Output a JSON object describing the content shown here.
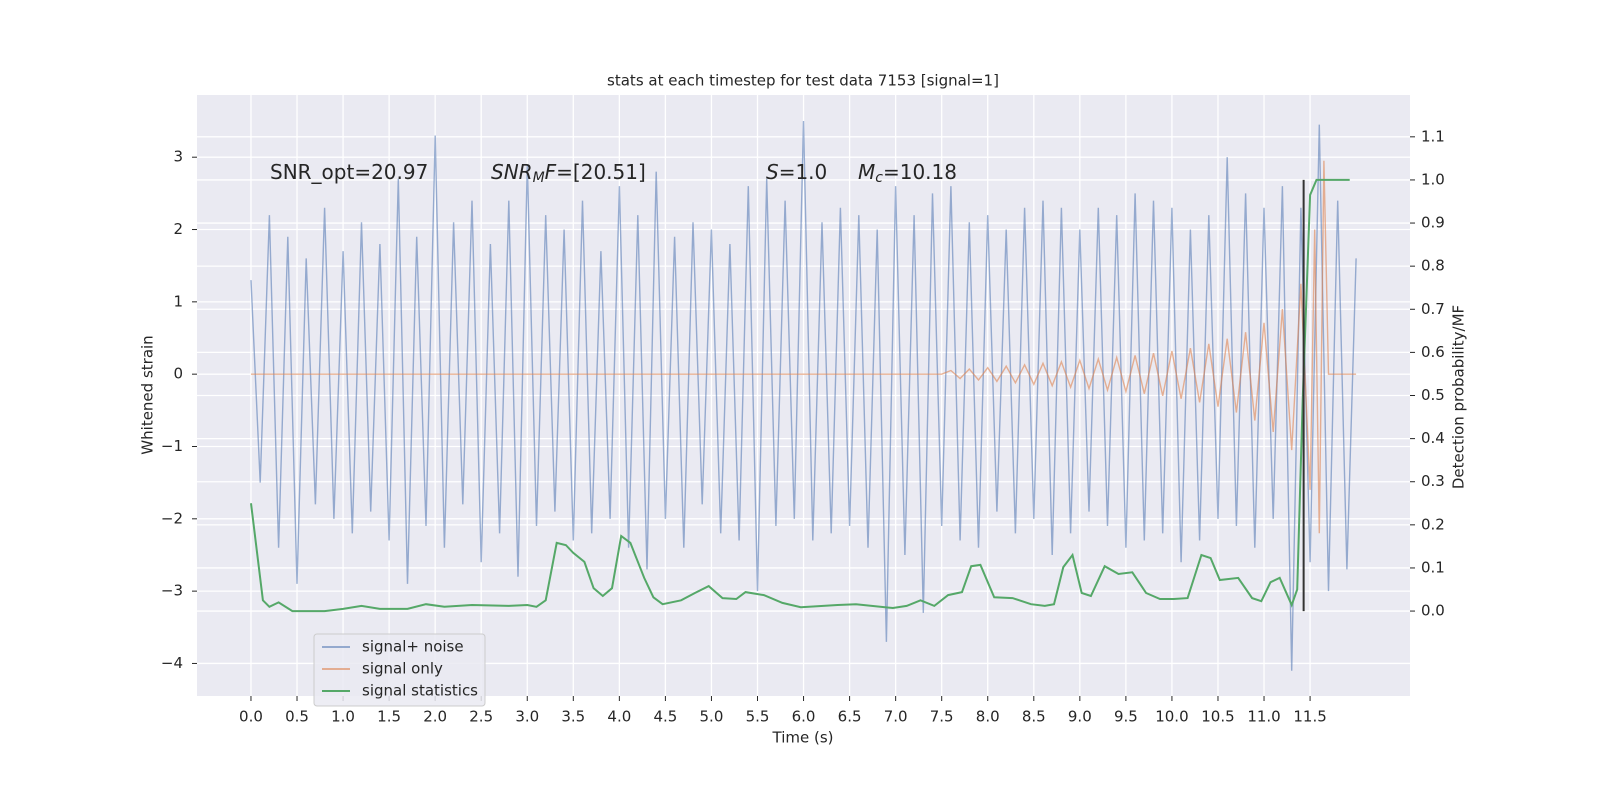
{
  "chart_data": {
    "type": "line",
    "title": "stats at each timestep for test data 7153 [signal=1]",
    "xlabel": "Time (s)",
    "ylabel": "Whitened strain",
    "y2label": "Detection probability/MF",
    "annotations": [
      [
        {
          "text": "SNR_opt=20.97",
          "style": "normal"
        }
      ],
      [
        {
          "text": "SNR",
          "style": "italic"
        },
        {
          "text": "M",
          "style": "italic-sub"
        },
        {
          "text": "F",
          "style": "italic"
        },
        {
          "text": "=[20.51]",
          "style": "normal"
        }
      ],
      [
        {
          "text": "S",
          "style": "italic"
        },
        {
          "text": "=1.0",
          "style": "normal"
        }
      ],
      [
        {
          "text": "M",
          "style": "italic"
        },
        {
          "text": "c",
          "style": "italic-sub"
        },
        {
          "text": "=10.18",
          "style": "normal"
        }
      ]
    ],
    "xlim": [
      -0.586,
      12.585
    ],
    "ylim": [
      -4.45,
      3.86
    ],
    "y2lim": [
      -0.197,
      1.197
    ],
    "xticks": [
      {
        "value": 0,
        "label": "0.0"
      },
      0.5,
      {
        "value": 1,
        "label": "1.0"
      },
      1.5,
      {
        "value": 2,
        "label": "2.0"
      },
      2.5,
      {
        "value": 3,
        "label": "3.0"
      },
      3.5,
      {
        "value": 4,
        "label": "4.0"
      },
      4.5,
      {
        "value": 5,
        "label": "5.0"
      },
      5.5,
      {
        "value": 6,
        "label": "6.0"
      },
      6.5,
      {
        "value": 7,
        "label": "7.0"
      },
      7.5,
      {
        "value": 8,
        "label": "8.0"
      },
      8.5,
      {
        "value": 9,
        "label": "9.0"
      },
      9.5,
      {
        "value": 10,
        "label": "10.0"
      },
      10.5,
      {
        "value": 11,
        "label": "11.0"
      },
      11.5
    ],
    "yticks": [
      {
        "value": -4,
        "label": "−4"
      },
      {
        "value": -3,
        "label": "−3"
      },
      {
        "value": -2,
        "label": "−2"
      },
      {
        "value": -1,
        "label": "−1"
      },
      0,
      1,
      2,
      3
    ],
    "y2ticks": [
      {
        "value": 0,
        "label": "0.0"
      },
      0.1,
      0.2,
      0.3,
      0.4,
      0.5,
      0.6,
      0.7,
      0.8,
      0.9,
      {
        "value": 1,
        "label": "1.0"
      },
      1.1
    ],
    "grid": true,
    "legend": "lower left",
    "vline": {
      "x": 11.43,
      "y2": [
        0,
        1
      ],
      "color": "#333333"
    },
    "series": [
      {
        "name": "signal+ noise",
        "color": "rgba(76,114,176,0.55)",
        "x": [
          0,
          0.1,
          0.2,
          0.3,
          0.4,
          0.5,
          0.6,
          0.7,
          0.8,
          0.9,
          1,
          1.1,
          1.2,
          1.3,
          1.4,
          1.5,
          1.6,
          1.7,
          1.8,
          1.9,
          2,
          2.1,
          2.2,
          2.3,
          2.4,
          2.5,
          2.6,
          2.7,
          2.8,
          2.9,
          3,
          3.1,
          3.2,
          3.3,
          3.4,
          3.5,
          3.6,
          3.7,
          3.8,
          3.9,
          4,
          4.1,
          4.2,
          4.3,
          4.4,
          4.5,
          4.6,
          4.7,
          4.8,
          4.9,
          5,
          5.1,
          5.2,
          5.3,
          5.4,
          5.5,
          5.6,
          5.7,
          5.8,
          5.9,
          6,
          6.1,
          6.2,
          6.3,
          6.4,
          6.5,
          6.6,
          6.7,
          6.8,
          6.9,
          7,
          7.1,
          7.2,
          7.3,
          7.4,
          7.5,
          7.6,
          7.7,
          7.8,
          7.9,
          8,
          8.1,
          8.2,
          8.3,
          8.4,
          8.5,
          8.6,
          8.7,
          8.8,
          8.9,
          9,
          9.1,
          9.2,
          9.3,
          9.4,
          9.5,
          9.6,
          9.7,
          9.8,
          9.9,
          10,
          10.1,
          10.2,
          10.3,
          10.4,
          10.5,
          10.6,
          10.7,
          10.8,
          10.9,
          11,
          11.1,
          11.2,
          11.3,
          11.4,
          11.5,
          11.6,
          11.7,
          11.8,
          11.9,
          12
        ],
        "values": [
          1.3,
          -1.5,
          2.2,
          -2.4,
          1.9,
          -2.9,
          1.6,
          -1.8,
          2.3,
          -2.0,
          1.7,
          -2.2,
          2.1,
          -1.9,
          1.8,
          -2.3,
          2.7,
          -2.9,
          1.9,
          -2.1,
          3.3,
          -2.4,
          2.1,
          -1.8,
          2.4,
          -2.6,
          1.8,
          -2.2,
          2.4,
          -2.8,
          2.9,
          -2.1,
          2.2,
          -1.9,
          2.0,
          -2.3,
          2.4,
          -2.2,
          1.7,
          -2.0,
          2.6,
          -2.4,
          2.2,
          -2.7,
          2.8,
          -2.0,
          1.9,
          -2.4,
          2.1,
          -1.8,
          2.0,
          -2.2,
          1.8,
          -2.3,
          2.6,
          -3.0,
          2.7,
          -2.1,
          2.4,
          -2.0,
          3.5,
          -2.3,
          2.1,
          -2.2,
          2.3,
          -2.1,
          2.2,
          -2.4,
          2.0,
          -3.7,
          2.6,
          -2.5,
          2.2,
          -3.3,
          2.5,
          -2.1,
          2.6,
          -2.3,
          2.1,
          -2.4,
          2.2,
          -1.9,
          2.0,
          -2.2,
          2.3,
          -2.0,
          2.4,
          -2.5,
          2.3,
          -2.2,
          2.0,
          -1.9,
          2.3,
          -2.1,
          2.2,
          -2.4,
          2.5,
          -2.3,
          2.4,
          -2.2,
          2.3,
          -2.6,
          2.0,
          -2.3,
          2.2,
          -2.0,
          3.0,
          -2.1,
          2.5,
          -2.4,
          2.3,
          -2.0,
          2.6,
          -4.1,
          2.3,
          -2.6,
          3.45,
          -3.0,
          2.4,
          -2.7,
          1.6
        ]
      },
      {
        "name": "signal only",
        "color": "rgba(221,132,82,0.6)",
        "x": [
          0,
          7.5,
          7.6,
          7.7,
          7.8,
          7.9,
          8,
          8.1,
          8.2,
          8.3,
          8.4,
          8.5,
          8.6,
          8.7,
          8.8,
          8.9,
          9,
          9.1,
          9.2,
          9.3,
          9.4,
          9.5,
          9.6,
          9.7,
          9.8,
          9.9,
          10,
          10.1,
          10.2,
          10.3,
          10.4,
          10.5,
          10.6,
          10.7,
          10.8,
          10.9,
          11,
          11.1,
          11.2,
          11.3,
          11.4,
          11.5,
          11.55,
          11.6,
          11.65,
          11.7,
          12
        ],
        "values": [
          0,
          0,
          0.05,
          -0.06,
          0.07,
          -0.08,
          0.09,
          -0.1,
          0.11,
          -0.12,
          0.13,
          -0.14,
          0.15,
          -0.16,
          0.17,
          -0.18,
          0.19,
          -0.2,
          0.21,
          -0.22,
          0.23,
          -0.24,
          0.26,
          -0.27,
          0.29,
          -0.3,
          0.32,
          -0.34,
          0.36,
          -0.39,
          0.42,
          -0.45,
          0.49,
          -0.53,
          0.58,
          -0.64,
          0.71,
          -0.8,
          0.9,
          -1.05,
          1.25,
          -1.6,
          2.0,
          -2.2,
          2.95,
          0,
          0
        ]
      },
      {
        "name": "signal statistics",
        "color": "#55a868",
        "axis": "y2",
        "x": [
          0,
          0.13,
          0.2,
          0.3,
          0.45,
          0.8,
          1,
          1.2,
          1.4,
          1.7,
          1.9,
          2.1,
          2.4,
          2.8,
          3,
          3.1,
          3.2,
          3.32,
          3.42,
          3.5,
          3.62,
          3.72,
          3.82,
          3.92,
          4.02,
          4.12,
          4.27,
          4.37,
          4.47,
          4.67,
          4.82,
          4.97,
          5.12,
          5.27,
          5.37,
          5.57,
          5.77,
          5.97,
          6.37,
          6.57,
          6.97,
          7.12,
          7.27,
          7.42,
          7.57,
          7.72,
          7.82,
          7.92,
          8.07,
          8.27,
          8.47,
          8.62,
          8.72,
          8.82,
          8.92,
          9.02,
          9.12,
          9.27,
          9.42,
          9.57,
          9.72,
          9.87,
          10.02,
          10.17,
          10.32,
          10.42,
          10.52,
          10.72,
          10.87,
          10.97,
          11.07,
          11.17,
          11.3,
          11.36,
          11.42,
          11.5,
          11.57,
          11.93
        ],
        "values": [
          0.25,
          0.025,
          0.01,
          0.02,
          0.0,
          0.0,
          0.005,
          0.012,
          0.005,
          0.005,
          0.016,
          0.01,
          0.014,
          0.012,
          0.014,
          0.01,
          0.025,
          0.158,
          0.153,
          0.135,
          0.114,
          0.053,
          0.035,
          0.053,
          0.174,
          0.158,
          0.077,
          0.032,
          0.016,
          0.025,
          0.042,
          0.058,
          0.03,
          0.028,
          0.044,
          0.037,
          0.019,
          0.009,
          0.014,
          0.016,
          0.007,
          0.012,
          0.025,
          0.012,
          0.037,
          0.044,
          0.104,
          0.107,
          0.032,
          0.03,
          0.016,
          0.012,
          0.016,
          0.102,
          0.13,
          0.042,
          0.035,
          0.104,
          0.086,
          0.09,
          0.042,
          0.028,
          0.028,
          0.03,
          0.13,
          0.123,
          0.072,
          0.077,
          0.03,
          0.023,
          0.067,
          0.077,
          0.014,
          0.05,
          0.49,
          0.965,
          1.0,
          1.0
        ]
      }
    ]
  }
}
